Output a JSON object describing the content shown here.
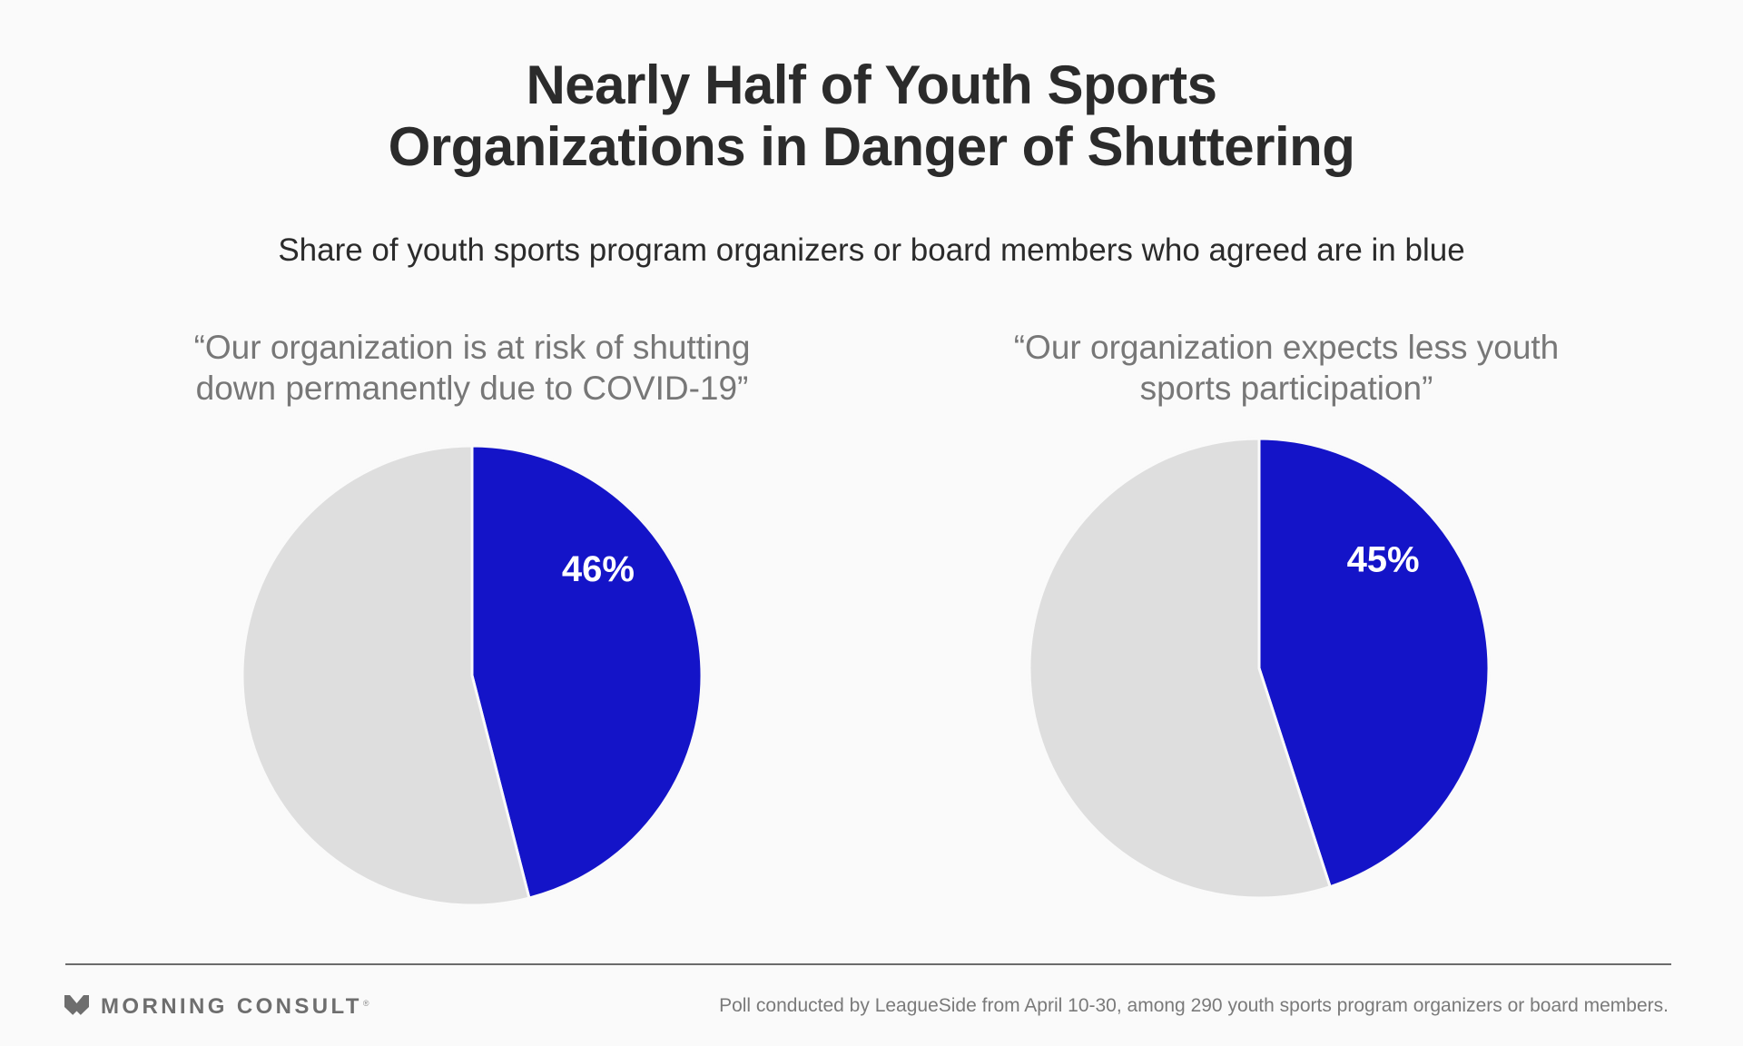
{
  "header": {
    "title_lines": [
      "Nearly Half of Youth Sports",
      "Organizations in Danger of Shuttering"
    ],
    "subtitle": "Share of youth sports program organizers or board members who agreed are in blue"
  },
  "colors": {
    "agreed": "#1414c8",
    "other": "#dedede",
    "background": "#fafafa",
    "separator": "#fafafa"
  },
  "chart_data": [
    {
      "type": "pie",
      "title": "“Our organization is at risk of shutting down permanently due to COVID-19”",
      "title_lines": [
        "“Our organization is at risk of shutting",
        "down permanently due to COVID-19”"
      ],
      "slices": [
        {
          "name": "Agreed",
          "value": 46,
          "label": "46%",
          "color": "#1414c8"
        },
        {
          "name": "Other",
          "value": 54,
          "label": "",
          "color": "#dedede"
        }
      ],
      "start_angle": "12 o'clock",
      "direction": "clockwise",
      "legend": "none"
    },
    {
      "type": "pie",
      "title": "“Our organization expects less youth sports participation”",
      "title_lines": [
        "“Our organization expects less youth",
        "sports participation”"
      ],
      "slices": [
        {
          "name": "Agreed",
          "value": 45,
          "label": "45%",
          "color": "#1414c8"
        },
        {
          "name": "Other",
          "value": 55,
          "label": "",
          "color": "#dedede"
        }
      ],
      "start_angle": "12 o'clock",
      "direction": "clockwise",
      "legend": "none"
    }
  ],
  "footer": {
    "brand": "MORNING CONSULT",
    "brand_mark": "®",
    "note": "Poll conducted by LeagueSide from April 10-30, among 290 youth sports program organizers or board members."
  }
}
